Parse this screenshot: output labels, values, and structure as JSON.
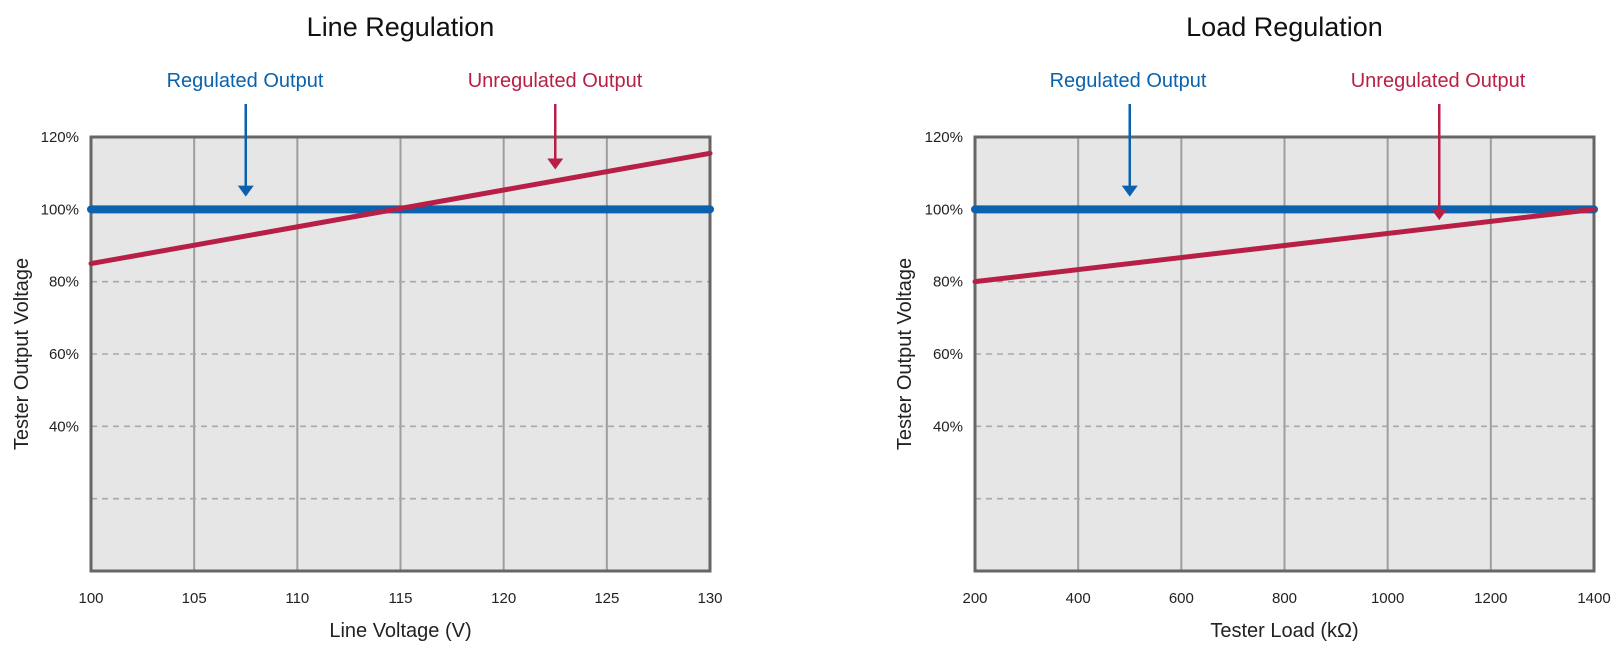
{
  "colors": {
    "regulated": "#0a62ae",
    "unregulated": "#b81f46",
    "plot_bg": "#e6e6e6",
    "frame": "#666666",
    "grid": "#9e9e9e",
    "dashed_grid": "#a8a8a8",
    "text": "#222222"
  },
  "chart_data": [
    {
      "type": "line",
      "title": "Line Regulation",
      "xlabel": "Line Voltage (V)",
      "ylabel": "Tester Output Voltage",
      "xlim": [
        100,
        130
      ],
      "ylim": [
        0,
        120
      ],
      "x_ticks": [
        100,
        105,
        110,
        115,
        120,
        125,
        130
      ],
      "x_tick_labels": [
        "100",
        "105",
        "110",
        "115",
        "120",
        "125",
        "130"
      ],
      "y_ticks": [
        40,
        60,
        80,
        100,
        120
      ],
      "y_tick_labels": [
        "40%",
        "60%",
        "80%",
        "100%",
        "120%"
      ],
      "y_gridlines": [
        20,
        40,
        60,
        80,
        100
      ],
      "grid": true,
      "series": [
        {
          "name": "Regulated Output",
          "x": [
            100,
            130
          ],
          "y": [
            100,
            100
          ]
        },
        {
          "name": "Unregulated Output",
          "x": [
            100,
            130
          ],
          "y": [
            85,
            115.5
          ]
        }
      ],
      "annotations": [
        {
          "text": "Regulated Output",
          "series": "Regulated Output",
          "x": 107.5,
          "y": 103.5
        },
        {
          "text": "Unregulated Output",
          "series": "Unregulated Output",
          "x": 122.5,
          "y": 111
        }
      ]
    },
    {
      "type": "line",
      "title": "Load Regulation",
      "xlabel": "Tester Load (kΩ)",
      "ylabel": "Tester Output Voltage",
      "xlim": [
        200,
        1400
      ],
      "ylim": [
        0,
        120
      ],
      "x_ticks": [
        200,
        400,
        600,
        800,
        1000,
        1200,
        1400
      ],
      "x_tick_labels": [
        "200",
        "400",
        "600",
        "800",
        "1000",
        "1200",
        "1400"
      ],
      "y_ticks": [
        40,
        60,
        80,
        100,
        120
      ],
      "y_tick_labels": [
        "40%",
        "60%",
        "80%",
        "100%",
        "120%"
      ],
      "y_gridlines": [
        20,
        40,
        60,
        80,
        100
      ],
      "grid": true,
      "series": [
        {
          "name": "Regulated Output",
          "x": [
            200,
            1400
          ],
          "y": [
            100,
            100
          ]
        },
        {
          "name": "Unregulated Output",
          "x": [
            200,
            1400
          ],
          "y": [
            80,
            100
          ]
        }
      ],
      "annotations": [
        {
          "text": "Regulated Output",
          "series": "Regulated Output",
          "x": 500,
          "y": 103.5
        },
        {
          "text": "Unregulated Output",
          "series": "Unregulated Output",
          "x": 1100,
          "y": 97
        }
      ]
    }
  ]
}
